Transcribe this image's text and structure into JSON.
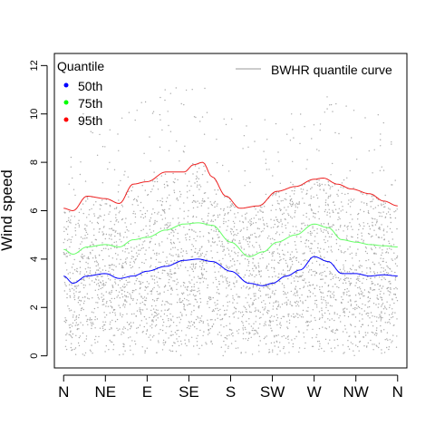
{
  "chart_data": {
    "type": "scatter",
    "title": "",
    "xlabel": "",
    "ylabel": "Wind speed",
    "ylim": [
      -0.5,
      12.5
    ],
    "yticks": [
      0,
      2,
      4,
      6,
      8,
      10,
      12
    ],
    "x_categories": [
      "N",
      "NE",
      "E",
      "SE",
      "S",
      "SW",
      "W",
      "NW",
      "N"
    ],
    "xlim": [
      -10,
      370
    ],
    "grid": false,
    "legend_quantile": {
      "title": "Quantile",
      "placement": "top-left",
      "entries": [
        {
          "label": "50th",
          "color": "#0000ff"
        },
        {
          "label": "75th",
          "color": "#00ff00"
        },
        {
          "label": "95th",
          "color": "#ff0000"
        }
      ]
    },
    "legend_curve": {
      "label": "BWHR quantile curve",
      "placement": "top-right",
      "color": "#999999"
    },
    "point_color": "#aaaaaa",
    "series": [
      {
        "name": "50th",
        "color": "#0000ff",
        "x": [
          0,
          10,
          25,
          45,
          60,
          75,
          90,
          110,
          130,
          145,
          160,
          180,
          200,
          215,
          225,
          240,
          255,
          270,
          285,
          300,
          315,
          330,
          345,
          360
        ],
        "y": [
          3.3,
          3.0,
          3.3,
          3.4,
          3.2,
          3.3,
          3.5,
          3.7,
          3.95,
          4.0,
          3.9,
          3.5,
          3.0,
          2.9,
          3.0,
          3.3,
          3.55,
          4.1,
          3.9,
          3.4,
          3.4,
          3.3,
          3.35,
          3.3
        ]
      },
      {
        "name": "75th",
        "color": "#66ff66",
        "x": [
          0,
          10,
          25,
          45,
          60,
          75,
          90,
          110,
          130,
          145,
          160,
          180,
          200,
          215,
          230,
          250,
          270,
          285,
          300,
          315,
          330,
          345,
          360
        ],
        "y": [
          4.4,
          4.2,
          4.5,
          4.6,
          4.5,
          4.8,
          4.9,
          5.2,
          5.45,
          5.5,
          5.4,
          4.7,
          4.1,
          4.3,
          4.7,
          5.0,
          5.45,
          5.3,
          4.8,
          4.7,
          4.6,
          4.55,
          4.5
        ]
      },
      {
        "name": "95th",
        "color": "#ee2222",
        "x": [
          0,
          10,
          25,
          45,
          60,
          75,
          90,
          110,
          130,
          140,
          150,
          160,
          175,
          190,
          210,
          230,
          250,
          270,
          280,
          295,
          310,
          330,
          345,
          360
        ],
        "y": [
          6.1,
          6.0,
          6.6,
          6.5,
          6.3,
          7.1,
          7.2,
          7.6,
          7.6,
          7.9,
          8.0,
          7.4,
          6.6,
          6.1,
          6.2,
          6.8,
          7.0,
          7.3,
          7.35,
          7.1,
          6.9,
          6.7,
          6.4,
          6.2
        ]
      }
    ]
  }
}
